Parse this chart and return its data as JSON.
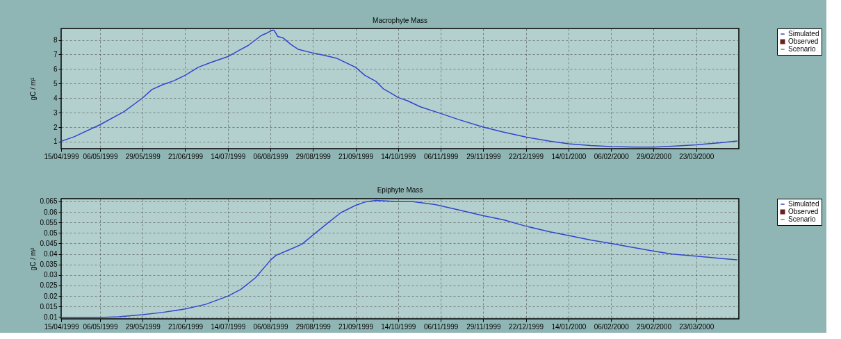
{
  "chart_data": [
    {
      "type": "line",
      "title": "Macrophyte Mass",
      "ylabel": "gC / m²",
      "grid": true,
      "legend": "top right",
      "x": [
        "1999-04-15",
        "1999-04-22",
        "1999-05-06",
        "1999-05-19",
        "1999-05-29",
        "1999-06-03",
        "1999-06-09",
        "1999-06-15",
        "1999-06-21",
        "1999-06-28",
        "1999-07-05",
        "1999-07-14",
        "1999-07-20",
        "1999-07-25",
        "1999-08-01",
        "1999-08-04",
        "1999-08-07",
        "1999-08-08",
        "1999-08-10",
        "1999-08-13",
        "1999-08-17",
        "1999-08-21",
        "1999-08-29",
        "1999-09-03",
        "1999-09-11",
        "1999-09-21",
        "1999-09-26",
        "1999-10-02",
        "1999-10-06",
        "1999-10-10",
        "1999-10-14",
        "1999-10-19",
        "1999-10-26",
        "1999-11-06",
        "1999-11-16",
        "1999-11-29",
        "1999-12-10",
        "1999-12-22",
        "2000-01-04",
        "2000-01-14",
        "2000-01-26",
        "2000-02-06",
        "2000-02-20",
        "2000-02-29",
        "2000-03-10",
        "2000-03-23",
        "2000-04-05",
        "2000-04-14"
      ],
      "series": [
        {
          "name": "Simulated",
          "color": "#3344cc",
          "values": [
            1.03,
            1.34,
            2.17,
            3.07,
            4.01,
            4.59,
            4.93,
            5.2,
            5.57,
            6.12,
            6.46,
            6.85,
            7.28,
            7.62,
            8.3,
            8.47,
            8.67,
            8.67,
            8.24,
            8.13,
            7.7,
            7.36,
            7.1,
            6.97,
            6.73,
            6.12,
            5.57,
            5.15,
            4.64,
            4.35,
            4.04,
            3.82,
            3.4,
            2.94,
            2.51,
            2.0,
            1.66,
            1.32,
            1.03,
            0.86,
            0.73,
            0.66,
            0.63,
            0.63,
            0.69,
            0.78,
            0.93,
            1.05
          ]
        },
        {
          "name": "Observed",
          "type": "scatter",
          "marker": "square",
          "color": "#6b2020",
          "values": [
            null,
            null,
            null,
            null,
            null,
            null,
            null,
            null,
            null,
            null,
            null,
            null,
            null,
            null,
            null,
            null,
            null,
            null,
            null,
            null,
            null,
            null,
            null,
            null,
            null,
            null,
            null,
            null,
            null,
            null,
            null,
            null,
            null,
            null,
            null,
            null,
            null,
            null,
            null,
            null,
            null,
            null,
            null,
            null,
            null,
            null,
            null,
            null
          ]
        },
        {
          "name": "Scenario",
          "color": "#4f9a6a",
          "values": [
            null,
            null,
            null,
            null,
            null,
            null,
            null,
            null,
            null,
            null,
            null,
            null,
            null,
            null,
            null,
            null,
            null,
            null,
            null,
            null,
            null,
            null,
            null,
            null,
            null,
            null,
            null,
            null,
            null,
            null,
            null,
            null,
            null,
            null,
            null,
            null,
            null,
            null,
            null,
            null,
            null,
            null,
            null,
            null,
            null,
            null,
            null,
            null
          ]
        }
      ],
      "xlim": [
        "1999-04-15",
        "2000-04-15"
      ],
      "xticks": [
        {
          "value": "1999-04-15",
          "label": "15/04/1999"
        },
        {
          "value": "1999-05-06",
          "label": "06/05/1999"
        },
        {
          "value": "1999-05-29",
          "label": "29/05/1999"
        },
        {
          "value": "1999-06-21",
          "label": "21/06/1999"
        },
        {
          "value": "1999-07-14",
          "label": "14/07/1999"
        },
        {
          "value": "1999-08-06",
          "label": "06/08/1999"
        },
        {
          "value": "1999-08-29",
          "label": "29/08/1999"
        },
        {
          "value": "1999-09-21",
          "label": "21/09/1999"
        },
        {
          "value": "1999-10-14",
          "label": "14/10/1999"
        },
        {
          "value": "1999-11-06",
          "label": "06/11/1999"
        },
        {
          "value": "1999-11-29",
          "label": "29/11/1999"
        },
        {
          "value": "1999-12-22",
          "label": "22/12/1999"
        },
        {
          "value": "2000-01-14",
          "label": "14/01/2000"
        },
        {
          "value": "2000-02-06",
          "label": "06/02/2000"
        },
        {
          "value": "2000-02-29",
          "label": "29/02/2000"
        },
        {
          "value": "2000-03-23",
          "label": "23/03/2000"
        }
      ],
      "ylim": [
        0.52,
        8.79
      ],
      "yticks": [
        1,
        2,
        3,
        4,
        5,
        6,
        7,
        8
      ]
    },
    {
      "type": "line",
      "title": "Epiphyte Mass",
      "ylabel": "gC / m²",
      "grid": true,
      "legend": "top right",
      "x": [
        "1999-04-15",
        "1999-05-06",
        "1999-05-16",
        "1999-05-29",
        "1999-06-09",
        "1999-06-21",
        "1999-07-02",
        "1999-07-14",
        "1999-07-21",
        "1999-07-29",
        "1999-08-06",
        "1999-08-09",
        "1999-08-16",
        "1999-08-23",
        "1999-08-29",
        "1999-09-05",
        "1999-09-13",
        "1999-09-21",
        "1999-09-26",
        "1999-10-02",
        "1999-10-14",
        "1999-10-22",
        "1999-11-03",
        "1999-11-15",
        "1999-11-29",
        "1999-12-10",
        "1999-12-22",
        "2000-01-04",
        "2000-01-14",
        "2000-01-26",
        "2000-02-06",
        "2000-02-19",
        "2000-02-29",
        "2000-03-10",
        "2000-03-23",
        "2000-04-05",
        "2000-04-14"
      ],
      "series": [
        {
          "name": "Simulated",
          "color": "#3344cc",
          "values": [
            0.0098,
            0.0098,
            0.0101,
            0.0111,
            0.0122,
            0.0138,
            0.016,
            0.0199,
            0.0231,
            0.0287,
            0.037,
            0.0393,
            0.0419,
            0.0446,
            0.049,
            0.054,
            0.0596,
            0.0631,
            0.0647,
            0.0655,
            0.0649,
            0.0649,
            0.0635,
            0.0611,
            0.0582,
            0.0562,
            0.0532,
            0.0505,
            0.0488,
            0.0466,
            0.045,
            0.0429,
            0.0413,
            0.0399,
            0.0389,
            0.0379,
            0.0372
          ]
        },
        {
          "name": "Observed",
          "type": "scatter",
          "marker": "square",
          "color": "#6b2020",
          "values": [
            null,
            null,
            null,
            null,
            null,
            null,
            null,
            null,
            null,
            null,
            null,
            null,
            null,
            null,
            null,
            null,
            null,
            null,
            null,
            null,
            null,
            null,
            null,
            null,
            null,
            null,
            null,
            null,
            null,
            null,
            null,
            null,
            null,
            null,
            null,
            null,
            null
          ]
        },
        {
          "name": "Scenario",
          "color": "#4f9a6a",
          "values": [
            null,
            null,
            null,
            null,
            null,
            null,
            null,
            null,
            null,
            null,
            null,
            null,
            null,
            null,
            null,
            null,
            null,
            null,
            null,
            null,
            null,
            null,
            null,
            null,
            null,
            null,
            null,
            null,
            null,
            null,
            null,
            null,
            null,
            null,
            null,
            null,
            null
          ]
        }
      ],
      "xlim": [
        "1999-04-15",
        "2000-04-15"
      ],
      "xticks": [
        {
          "value": "1999-04-15",
          "label": "15/04/1999"
        },
        {
          "value": "1999-05-06",
          "label": "06/05/1999"
        },
        {
          "value": "1999-05-29",
          "label": "29/05/1999"
        },
        {
          "value": "1999-06-21",
          "label": "21/06/1999"
        },
        {
          "value": "1999-07-14",
          "label": "14/07/1999"
        },
        {
          "value": "1999-08-06",
          "label": "06/08/1999"
        },
        {
          "value": "1999-08-29",
          "label": "29/08/1999"
        },
        {
          "value": "1999-09-21",
          "label": "21/09/1999"
        },
        {
          "value": "1999-10-14",
          "label": "14/10/1999"
        },
        {
          "value": "1999-11-06",
          "label": "06/11/1999"
        },
        {
          "value": "1999-11-29",
          "label": "29/11/1999"
        },
        {
          "value": "1999-12-22",
          "label": "22/12/1999"
        },
        {
          "value": "2000-01-14",
          "label": "14/01/2000"
        },
        {
          "value": "2000-02-06",
          "label": "06/02/2000"
        },
        {
          "value": "2000-02-29",
          "label": "29/02/2000"
        },
        {
          "value": "2000-03-23",
          "label": "23/03/2000"
        }
      ],
      "ylim": [
        0.0091,
        0.0663
      ],
      "yticks": [
        0.01,
        0.015,
        0.02,
        0.025,
        0.03,
        0.035,
        0.04,
        0.045,
        0.05,
        0.055,
        0.06,
        0.065
      ]
    }
  ]
}
